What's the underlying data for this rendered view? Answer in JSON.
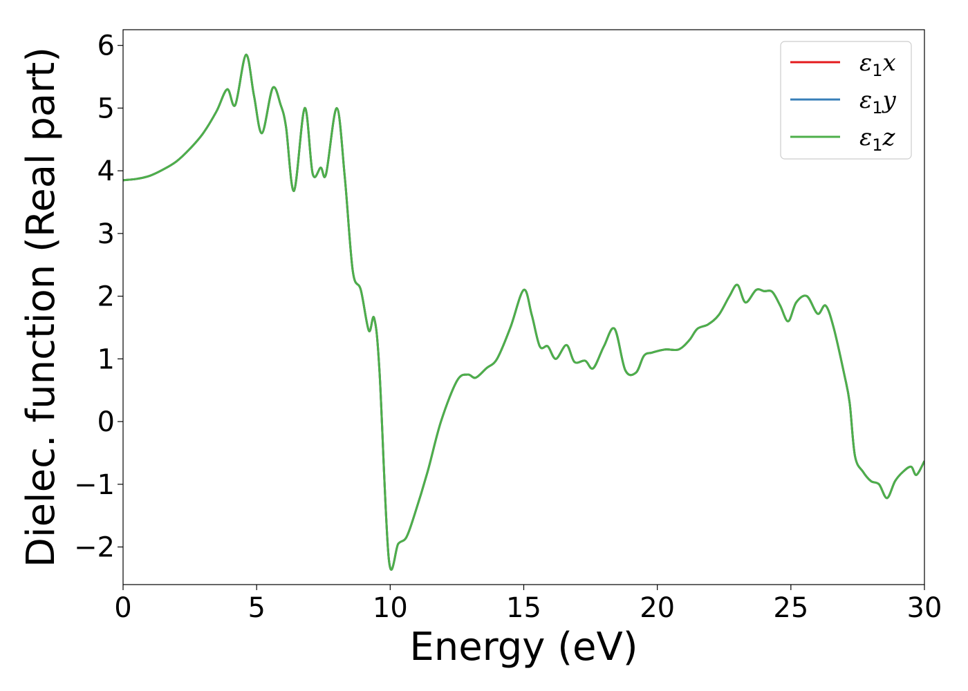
{
  "chart_data": {
    "type": "line",
    "xlabel": "Energy (eV)",
    "ylabel": "Dielec. function (Real part)",
    "xlim": [
      0,
      30
    ],
    "ylim": [
      -2.6,
      6.25
    ],
    "xticks": [
      0,
      5,
      10,
      15,
      20,
      25,
      30
    ],
    "xtick_labels": [
      "0",
      "5",
      "10",
      "15",
      "20",
      "25",
      "30"
    ],
    "yticks": [
      -2,
      -1,
      0,
      1,
      2,
      3,
      4,
      5,
      6
    ],
    "ytick_labels": [
      "−2",
      "−1",
      "0",
      "1",
      "2",
      "3",
      "4",
      "5",
      "6"
    ],
    "grid": false,
    "legend_position": "top-right",
    "x": [
      0,
      0.5,
      1,
      1.5,
      2,
      2.5,
      3,
      3.5,
      3.9,
      4.2,
      4.6,
      4.9,
      5.2,
      5.6,
      5.9,
      6.1,
      6.4,
      6.8,
      7.1,
      7.4,
      7.6,
      8.0,
      8.3,
      8.6,
      8.9,
      9.2,
      9.4,
      9.6,
      9.95,
      10.3,
      10.6,
      10.9,
      11.4,
      11.9,
      12.5,
      12.9,
      13.2,
      13.6,
      14.0,
      14.5,
      15.0,
      15.3,
      15.6,
      15.9,
      16.2,
      16.6,
      16.9,
      17.3,
      17.6,
      18.0,
      18.4,
      18.8,
      19.2,
      19.5,
      19.8,
      20.3,
      20.8,
      21.2,
      21.5,
      21.9,
      22.3,
      22.7,
      23.0,
      23.3,
      23.7,
      24.0,
      24.3,
      24.6,
      24.9,
      25.2,
      25.6,
      26.0,
      26.3,
      26.6,
      27.0,
      27.2,
      27.4,
      27.7,
      28.0,
      28.3,
      28.6,
      28.9,
      29.2,
      29.5,
      29.7,
      30.0
    ],
    "series": [
      {
        "name": "ε₁x",
        "color": "#e41a1c",
        "y": [
          3.85,
          3.87,
          3.92,
          4.02,
          4.15,
          4.35,
          4.6,
          4.95,
          5.3,
          5.05,
          5.85,
          5.2,
          4.6,
          5.32,
          5.05,
          4.7,
          3.68,
          5.0,
          3.95,
          4.05,
          3.95,
          5.0,
          3.9,
          2.4,
          2.1,
          1.45,
          1.65,
          0.8,
          -2.2,
          -1.95,
          -1.85,
          -1.5,
          -0.8,
          0.0,
          0.65,
          0.75,
          0.7,
          0.85,
          1.0,
          1.5,
          2.1,
          1.7,
          1.2,
          1.2,
          1.0,
          1.22,
          0.95,
          0.97,
          0.85,
          1.2,
          1.48,
          0.82,
          0.78,
          1.05,
          1.1,
          1.15,
          1.15,
          1.3,
          1.48,
          1.55,
          1.7,
          2.0,
          2.18,
          1.9,
          2.1,
          2.08,
          2.07,
          1.85,
          1.6,
          1.9,
          2.0,
          1.72,
          1.85,
          1.5,
          0.75,
          0.3,
          -0.55,
          -0.8,
          -0.95,
          -1.0,
          -1.22,
          -0.95,
          -0.8,
          -0.72,
          -0.85,
          -0.63
        ]
      },
      {
        "name": "ε₁y",
        "color": "#377eb8",
        "y": [
          3.85,
          3.87,
          3.92,
          4.02,
          4.15,
          4.35,
          4.6,
          4.95,
          5.3,
          5.05,
          5.85,
          5.2,
          4.6,
          5.32,
          5.05,
          4.7,
          3.68,
          5.0,
          3.95,
          4.05,
          3.95,
          5.0,
          3.9,
          2.4,
          2.1,
          1.45,
          1.65,
          0.8,
          -2.2,
          -1.95,
          -1.85,
          -1.5,
          -0.8,
          0.0,
          0.65,
          0.75,
          0.7,
          0.85,
          1.0,
          1.5,
          2.1,
          1.7,
          1.2,
          1.2,
          1.0,
          1.22,
          0.95,
          0.97,
          0.85,
          1.2,
          1.48,
          0.82,
          0.78,
          1.05,
          1.1,
          1.15,
          1.15,
          1.3,
          1.48,
          1.55,
          1.7,
          2.0,
          2.18,
          1.9,
          2.1,
          2.08,
          2.07,
          1.85,
          1.6,
          1.9,
          2.0,
          1.72,
          1.85,
          1.5,
          0.75,
          0.3,
          -0.55,
          -0.8,
          -0.95,
          -1.0,
          -1.22,
          -0.95,
          -0.8,
          -0.72,
          -0.85,
          -0.63
        ]
      },
      {
        "name": "ε₁z",
        "color": "#4daf4a",
        "y": [
          3.85,
          3.87,
          3.92,
          4.02,
          4.15,
          4.35,
          4.6,
          4.95,
          5.3,
          5.05,
          5.85,
          5.2,
          4.6,
          5.32,
          5.05,
          4.7,
          3.68,
          5.0,
          3.95,
          4.05,
          3.95,
          5.0,
          3.9,
          2.4,
          2.1,
          1.45,
          1.65,
          0.8,
          -2.2,
          -1.95,
          -1.85,
          -1.5,
          -0.8,
          0.0,
          0.65,
          0.75,
          0.7,
          0.85,
          1.0,
          1.5,
          2.1,
          1.7,
          1.2,
          1.2,
          1.0,
          1.22,
          0.95,
          0.97,
          0.85,
          1.2,
          1.48,
          0.82,
          0.78,
          1.05,
          1.1,
          1.15,
          1.15,
          1.3,
          1.48,
          1.55,
          1.7,
          2.0,
          2.18,
          1.9,
          2.1,
          2.08,
          2.07,
          1.85,
          1.6,
          1.9,
          2.0,
          1.72,
          1.85,
          1.5,
          0.75,
          0.3,
          -0.55,
          -0.8,
          -0.95,
          -1.0,
          -1.22,
          -0.95,
          -0.8,
          -0.72,
          -0.85,
          -0.63
        ]
      }
    ],
    "legend": [
      {
        "symbol": "ε",
        "sub": "1",
        "axis": "x"
      },
      {
        "symbol": "ε",
        "sub": "1",
        "axis": "y"
      },
      {
        "symbol": "ε",
        "sub": "1",
        "axis": "z"
      }
    ]
  }
}
